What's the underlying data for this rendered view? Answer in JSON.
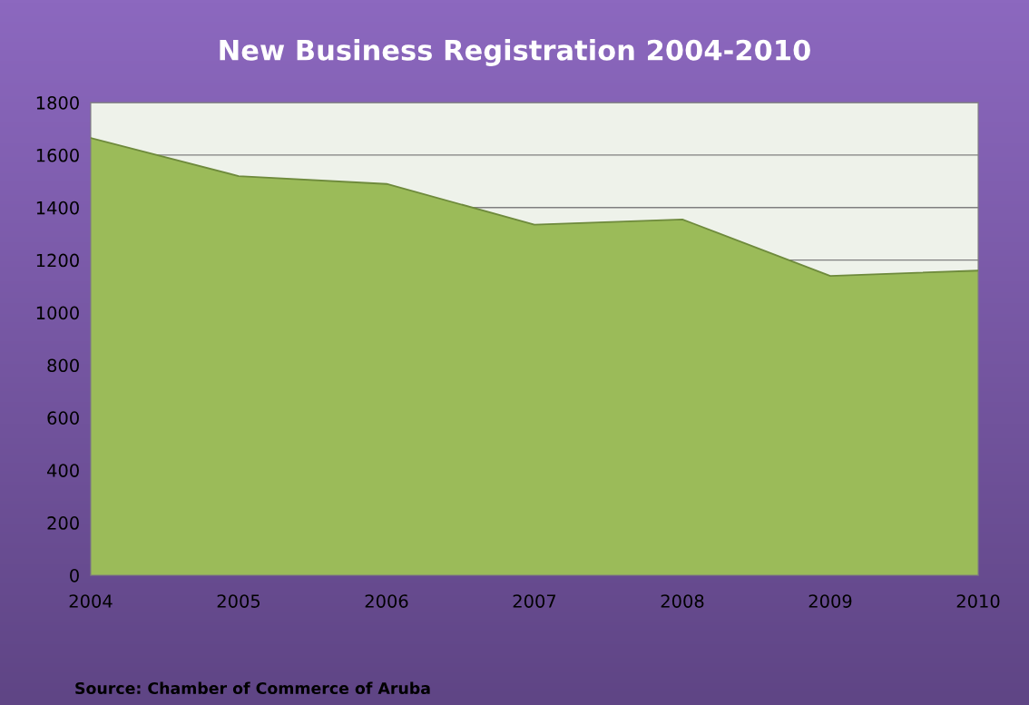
{
  "chart_data": {
    "type": "area",
    "title": "New Business Registration 2004-2010",
    "categories": [
      "2004",
      "2005",
      "2006",
      "2007",
      "2008",
      "2009",
      "2010"
    ],
    "series": [
      {
        "color": "#9bbb59",
        "values": [
          1665,
          1520,
          1490,
          1335,
          1355,
          1140,
          1160
        ]
      }
    ],
    "ylim": [
      0,
      1800
    ],
    "yticks": [
      0,
      200,
      400,
      600,
      800,
      1000,
      1200,
      1400,
      1600,
      1800
    ],
    "grid": "y",
    "legend": false,
    "annotations": [
      "Source: Chamber of Commerce of Aruba"
    ]
  }
}
